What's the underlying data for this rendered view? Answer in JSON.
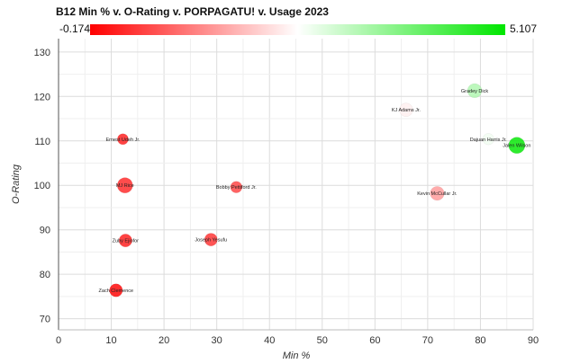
{
  "chart_data": {
    "type": "scatter",
    "title": "B12 Min % v. O-Rating v. PORPAGATU! v. Usage 2023",
    "xlabel": "Min %",
    "ylabel": "O-Rating",
    "xlim": [
      0,
      90
    ],
    "ylim": [
      67.5,
      133
    ],
    "x_ticks": [
      0,
      10,
      20,
      30,
      40,
      50,
      60,
      70,
      80,
      90
    ],
    "y_ticks": [
      70,
      80,
      90,
      100,
      110,
      120,
      130
    ],
    "grid": true,
    "color_scale": {
      "metric": "PORPAGATU!",
      "min": -0.174,
      "max": 5.107,
      "min_label": "-0.174",
      "max_label": "5.107",
      "low_color": "#ff0000",
      "mid_color": "#ffffff",
      "high_color": "#00e600"
    },
    "size_metric": "Usage",
    "points": [
      {
        "name": "Gradey Dick",
        "x": 78.9,
        "y": 121.3,
        "porpagatu": 3.3,
        "usage": 20.5
      },
      {
        "name": "KJ Adams Jr.",
        "x": 65.9,
        "y": 117.0,
        "porpagatu": 2.3,
        "usage": 18.5
      },
      {
        "name": "Dajuan Harris Jr.",
        "x": 81.5,
        "y": 110.4,
        "porpagatu": 2.6,
        "usage": 13.0
      },
      {
        "name": "Jalen Wilson",
        "x": 86.9,
        "y": 109.0,
        "porpagatu": 5.107,
        "usage": 27.0
      },
      {
        "name": "Ernest Udeh Jr.",
        "x": 12.2,
        "y": 110.4,
        "porpagatu": 0.1,
        "usage": 12.0
      },
      {
        "name": "MJ Rice",
        "x": 12.6,
        "y": 100.0,
        "porpagatu": 0.2,
        "usage": 24.0
      },
      {
        "name": "Bobby Pettiford Jr.",
        "x": 33.7,
        "y": 99.6,
        "porpagatu": 0.5,
        "usage": 13.5
      },
      {
        "name": "Kevin McCullar Jr.",
        "x": 71.8,
        "y": 98.2,
        "porpagatu": 1.4,
        "usage": 20.0
      },
      {
        "name": "Zuby Ejiofor",
        "x": 12.7,
        "y": 87.6,
        "porpagatu": 0.1,
        "usage": 17.0
      },
      {
        "name": "Joseph Yesufu",
        "x": 28.9,
        "y": 87.8,
        "porpagatu": 0.3,
        "usage": 16.5
      },
      {
        "name": "Zach Clemence",
        "x": 10.9,
        "y": 76.4,
        "porpagatu": -0.174,
        "usage": 17.0
      }
    ]
  }
}
